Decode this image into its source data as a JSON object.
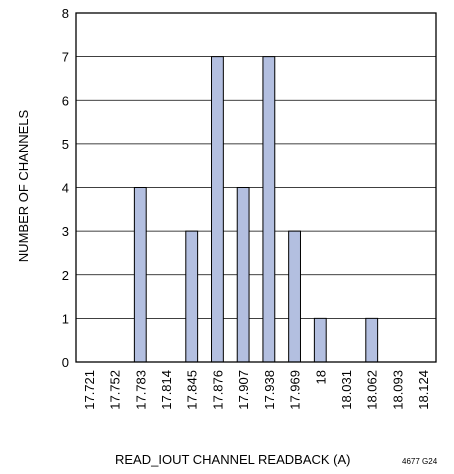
{
  "chart_data": {
    "type": "bar",
    "xlabel": "READ_IOUT CHANNEL READBACK (A)",
    "ylabel": "NUMBER OF CHANNELS",
    "figure_id": "4677 G24",
    "categories": [
      "17.721",
      "17.752",
      "17.783",
      "17.814",
      "17.845",
      "17.876",
      "17.907",
      "17.938",
      "17.969",
      "18",
      "18.031",
      "18.062",
      "18.093",
      "18.124"
    ],
    "values": [
      0,
      0,
      4,
      0,
      3,
      7,
      4,
      7,
      3,
      1,
      0,
      1,
      0,
      0
    ],
    "ylim": [
      0,
      8
    ],
    "yticks": [
      0,
      1,
      2,
      3,
      4,
      5,
      6,
      7,
      8
    ],
    "grid": true,
    "legend": "none",
    "colors": {
      "bar_fill": "#b3bfe0",
      "bar_stroke": "#000000",
      "grid": "#000000"
    }
  }
}
